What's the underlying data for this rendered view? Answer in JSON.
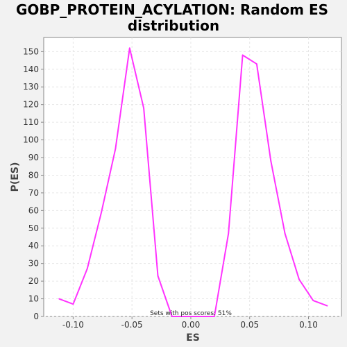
{
  "chart_data": {
    "type": "line",
    "title_line1": "GOBP_PROTEIN_ACYLATION: Random ES",
    "title_line2": "distribution",
    "xlabel": "ES",
    "ylabel": "P(ES)",
    "xlim": [
      -0.125,
      0.128
    ],
    "ylim": [
      0,
      158
    ],
    "x_ticks": [
      -0.1,
      -0.05,
      0.0,
      0.05,
      0.1
    ],
    "x_tick_labels": [
      "-0.10",
      "-0.05",
      "0.00",
      "0.05",
      "0.10"
    ],
    "y_ticks": [
      0,
      10,
      20,
      30,
      40,
      50,
      60,
      70,
      80,
      90,
      100,
      110,
      120,
      130,
      140,
      150
    ],
    "y_tick_labels": [
      "0",
      "10",
      "20",
      "30",
      "40",
      "50",
      "60",
      "70",
      "80",
      "90",
      "100",
      "110",
      "120",
      "130",
      "140",
      "150"
    ],
    "grid": true,
    "annotation": "Sets with pos scores: 51%",
    "series": [
      {
        "color": "#ff33ff",
        "x": [
          -0.112,
          -0.1,
          -0.088,
          -0.076,
          -0.064,
          -0.052,
          -0.04,
          -0.028,
          -0.016,
          -0.004,
          0.008,
          0.02,
          0.032,
          0.044,
          0.056,
          0.068,
          0.08,
          0.092,
          0.104,
          0.116
        ],
        "y": [
          10,
          7,
          27,
          59,
          95,
          152,
          118,
          23,
          0,
          0,
          0,
          0,
          47,
          148,
          143,
          88,
          47,
          21,
          9,
          6
        ]
      }
    ]
  }
}
